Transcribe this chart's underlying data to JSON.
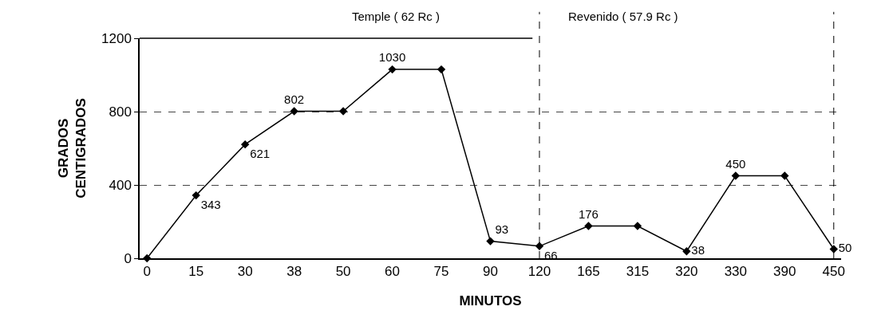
{
  "chart_data": {
    "type": "line",
    "xlabel": "MINUTOS",
    "ylabel": "GRADOS\nCENTIGRADOS",
    "categories": [
      "0",
      "15",
      "30",
      "38",
      "50",
      "60",
      "75",
      "90",
      "120",
      "165",
      "315",
      "320",
      "330",
      "390",
      "450"
    ],
    "values": [
      0,
      343,
      621,
      802,
      802,
      1030,
      1030,
      93,
      66,
      176,
      176,
      38,
      450,
      450,
      50
    ],
    "value_labels": [
      null,
      "343",
      "621",
      "802",
      null,
      "1030",
      null,
      "93",
      "66",
      "176",
      null,
      "38",
      "450",
      null,
      "50"
    ],
    "color": "#000000",
    "marker": "diamond",
    "line_style": "solid",
    "ylim": [
      0,
      1200
    ],
    "yticks": [
      0,
      400,
      800,
      1200
    ],
    "grid": "y",
    "ref_lines": [
      {
        "axis": "x",
        "value": "120",
        "line_style": "dashed",
        "color": "#000000"
      },
      {
        "axis": "x",
        "value": "450",
        "line_style": "dashed",
        "color": "#000000"
      }
    ],
    "annotations": [
      "Temple ( 62 Rc )",
      "Revenido ( 57.9 Rc )"
    ]
  }
}
